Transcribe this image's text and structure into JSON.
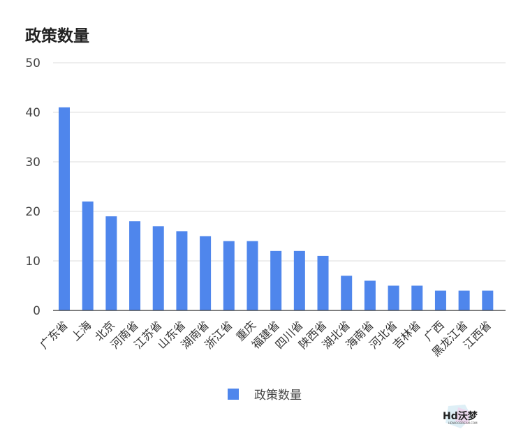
{
  "chart_data": {
    "type": "bar",
    "title": "政策数量",
    "categories": [
      "广东省",
      "上海",
      "北京",
      "河南省",
      "江苏省",
      "山东省",
      "湖南省",
      "浙江省",
      "重庆",
      "福建省",
      "四川省",
      "陕西省",
      "湖北省",
      "海南省",
      "河北省",
      "吉林省",
      "广西",
      "黑龙江省",
      "江西省"
    ],
    "series": [
      {
        "name": "政策数量",
        "values": [
          41,
          22,
          19,
          18,
          17,
          16,
          15,
          14,
          14,
          12,
          12,
          11,
          7,
          6,
          5,
          5,
          4,
          4,
          4
        ]
      }
    ],
    "ylim": [
      0,
      50
    ],
    "yticks": [
      0,
      10,
      20,
      30,
      40,
      50
    ],
    "grid": true,
    "legend_position": "bottom",
    "bar_color": "#4F86EC"
  },
  "watermark": {
    "text": "Hd沃梦",
    "subtext": "HDWOODREAM.COM"
  }
}
